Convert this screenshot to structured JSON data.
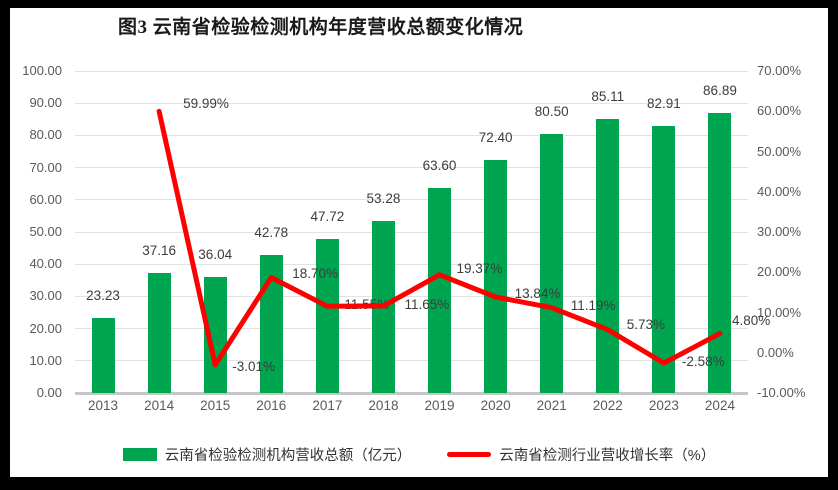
{
  "title": "图3  云南省检验检测机构年度营收总额变化情况",
  "colors": {
    "bar": "#00A550",
    "line": "#FE0000",
    "grid": "#E2E2E2",
    "baseline": "#C6C6C6",
    "axis_text": "#595959",
    "data_label_text": "#3C3C3C",
    "frame_background": "#000000",
    "panel_background": "#FFFFFF"
  },
  "legend": [
    {
      "label": "云南省检验检测机构营收总额（亿元）",
      "type": "bar"
    },
    {
      "label": "云南省检测行业营收增长率（%）",
      "type": "line"
    }
  ],
  "chart_data": {
    "type": "bar",
    "subtype": "combo bar+line, dual axis",
    "title": "图3  云南省检验检测机构年度营收总额变化情况",
    "categories": [
      "2013",
      "2014",
      "2015",
      "2016",
      "2017",
      "2018",
      "2019",
      "2020",
      "2021",
      "2022",
      "2023",
      "2024"
    ],
    "series": [
      {
        "name": "云南省检验检测机构营收总额（亿元）",
        "type": "bar",
        "axis": "left",
        "values": [
          23.23,
          37.16,
          36.04,
          42.78,
          47.72,
          53.28,
          63.6,
          72.4,
          80.5,
          85.11,
          82.91,
          86.89
        ],
        "labels": [
          "23.23",
          "37.16",
          "36.04",
          "42.78",
          "47.72",
          "53.28",
          "63.60",
          "72.40",
          "80.50",
          "85.11",
          "82.91",
          "86.89"
        ]
      },
      {
        "name": "云南省检测行业营收增长率（%）",
        "type": "line",
        "axis": "right",
        "values": [
          null,
          59.99,
          -3.01,
          18.7,
          11.55,
          11.65,
          19.37,
          13.84,
          11.19,
          5.73,
          -2.58,
          4.8
        ],
        "labels": [
          null,
          "59.99%",
          "-3.01%",
          "18.70%",
          "11.55%",
          "11.65%",
          "19.37%",
          "13.84%",
          "11.19%",
          "5.73%",
          "-2.58%",
          "4.80%"
        ]
      }
    ],
    "left_axis": {
      "min": 0,
      "max": 100,
      "step": 10,
      "tick_labels": [
        "100.00",
        "90.00",
        "80.00",
        "70.00",
        "60.00",
        "50.00",
        "40.00",
        "30.00",
        "20.00",
        "10.00",
        "0.00"
      ]
    },
    "right_axis": {
      "min": -10,
      "max": 70,
      "step": 10,
      "tick_labels": [
        "70.00%",
        "60.00%",
        "50.00%",
        "40.00%",
        "30.00%",
        "20.00%",
        "10.00%",
        "0.00%",
        "-10.00%"
      ]
    },
    "grid": true,
    "legend_position": "bottom"
  }
}
